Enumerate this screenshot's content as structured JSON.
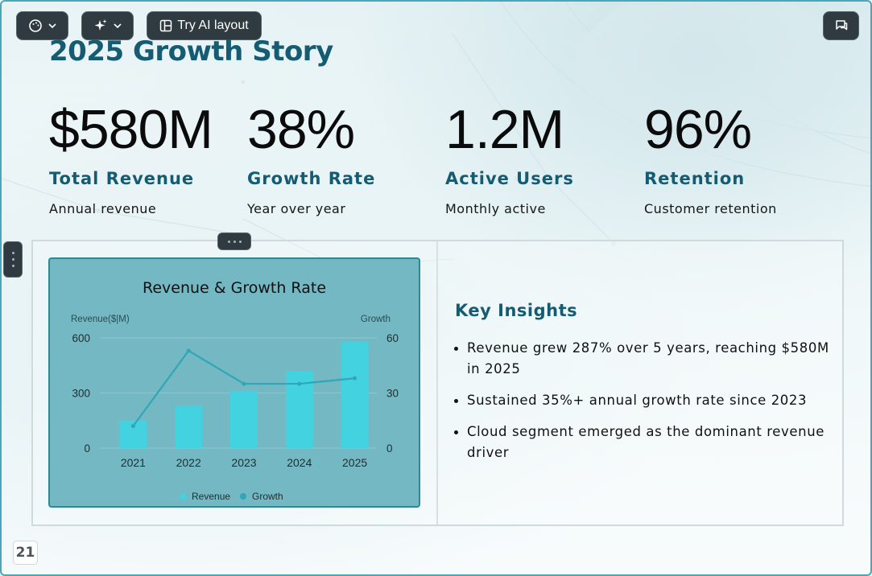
{
  "toolbar": {
    "ai_layout_label": "Try AI layout",
    "icons": [
      "palette-icon",
      "chevron-down-icon",
      "sparkle-icon",
      "layout-icon",
      "comment-icon"
    ]
  },
  "slide": {
    "title": "2025 Growth Story",
    "page_number": "21"
  },
  "stats": [
    {
      "value": "$580M",
      "label": "Total Revenue",
      "desc": "Annual revenue"
    },
    {
      "value": "38%",
      "label": "Growth Rate",
      "desc": "Year over year"
    },
    {
      "value": "1.2M",
      "label": "Active Users",
      "desc": "Monthly active"
    },
    {
      "value": "96%",
      "label": "Retention",
      "desc": "Customer retention"
    }
  ],
  "insights": {
    "title": "Key Insights",
    "items": [
      "Revenue grew 287% over 5 years, reaching $580M in 2025",
      "Sustained 35%+ annual growth rate since 2023",
      "Cloud segment emerged as the dominant revenue driver"
    ]
  },
  "colors": {
    "accent": "#155b72",
    "bar": "#43d3e0",
    "line": "#2fa7b6",
    "card": "#73b8c3"
  },
  "chart_data": {
    "type": "bar",
    "title": "Revenue & Growth Rate",
    "categories": [
      "2021",
      "2022",
      "2023",
      "2024",
      "2025"
    ],
    "ylabel": "Revenue($|M)",
    "y2label": "Growth",
    "ylim": [
      0,
      600
    ],
    "y2lim": [
      0,
      60
    ],
    "yticks": [
      "0",
      "300",
      "600"
    ],
    "y2ticks": [
      "0",
      "30",
      "60"
    ],
    "grid": true,
    "legend_position": "bottom",
    "series": [
      {
        "name": "Revenue",
        "type": "bar",
        "axis": "left",
        "values": [
          150,
          230,
          310,
          420,
          580
        ]
      },
      {
        "name": "Growth",
        "type": "line",
        "axis": "right",
        "values": [
          12,
          53,
          35,
          35,
          38
        ]
      }
    ]
  }
}
